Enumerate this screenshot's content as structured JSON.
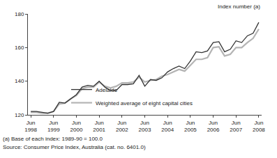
{
  "chart_data": {
    "type": "line",
    "y_label": "Index number (a)",
    "annotations": [
      "(a) Base of each index: 1989-90 = 100.0",
      "Source: Consumer Price Index, Australia (cat. no. 6401.0)"
    ],
    "categories": [
      "Jun 1998",
      null,
      null,
      null,
      "Jun 1999",
      null,
      null,
      null,
      "Jun 2000",
      null,
      null,
      null,
      "Jun 2001",
      null,
      null,
      null,
      "Jun 2002",
      null,
      null,
      null,
      "Jun 2003",
      null,
      null,
      null,
      "Jun 2004",
      null,
      null,
      null,
      "Jun 2005",
      null,
      null,
      null,
      "Jun 2006",
      null,
      null,
      null,
      "Jun 2007",
      null,
      null,
      null,
      "Jun 2008"
    ],
    "series": [
      {
        "name": "Adelaide",
        "color": "#333333",
        "values": [
          122,
          122,
          121.5,
          121,
          122,
          127.5,
          127,
          129.5,
          132,
          136.5,
          137.5,
          137,
          140,
          136.5,
          134.5,
          134.5,
          138,
          138,
          138.5,
          143.5,
          137,
          141,
          140.5,
          142,
          145.5,
          147.5,
          149,
          147.5,
          152,
          157.5,
          157,
          158,
          163,
          163.5,
          157.5,
          159,
          164,
          163,
          167,
          168.5,
          175
        ]
      },
      {
        "name": "Weighted average of eight capital cities",
        "color": "#b4b4b4",
        "values": [
          121.5,
          121.5,
          121,
          121,
          122,
          126.5,
          127,
          129.5,
          131.5,
          135.5,
          136.5,
          136.5,
          139.5,
          137,
          136,
          137,
          139,
          139,
          139.5,
          142.5,
          139.5,
          140.5,
          141,
          143,
          144,
          145.5,
          147,
          146,
          149.5,
          153,
          153,
          154,
          160,
          160.5,
          155,
          156,
          160,
          160,
          163,
          165.5,
          171
        ]
      }
    ],
    "ylim": [
      120,
      180
    ],
    "yticks": [
      120,
      140,
      160,
      180
    ],
    "grid": false,
    "legend": "lower left"
  }
}
